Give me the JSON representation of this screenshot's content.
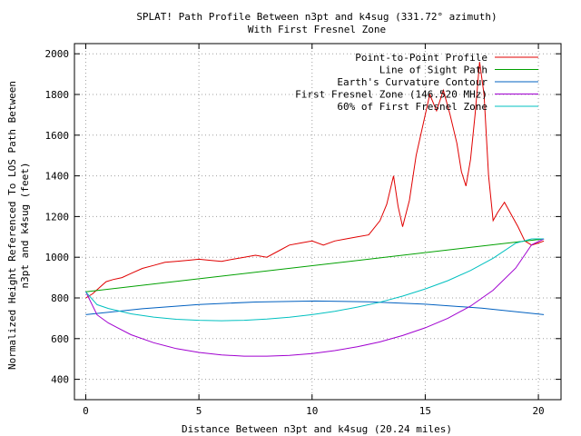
{
  "chart_data": {
    "type": "line",
    "title_line1": "SPLAT! Path Profile Between n3pt and k4sug (331.72° azimuth)",
    "title_line2": "With First Fresnel Zone",
    "xlabel": "Distance Between n3pt and k4sug (20.24 miles)",
    "ylabel_line1": "Normalized Height Referenced To LOS Path Between",
    "ylabel_line2": "n3pt and k4sug (feet)",
    "xlim": [
      -0.5,
      21
    ],
    "ylim": [
      300,
      2050
    ],
    "x_ticks": [
      0,
      5,
      10,
      15,
      20
    ],
    "y_ticks": [
      400,
      600,
      800,
      1000,
      1200,
      1400,
      1600,
      1800,
      2000
    ],
    "grid": true,
    "legend_position": "top-right",
    "series": [
      {
        "name": "Point-to-Point Profile",
        "color": "#e00000",
        "x": [
          0,
          0.3,
          0.6,
          0.9,
          1.2,
          1.6,
          2.0,
          2.5,
          3.0,
          3.5,
          4.0,
          4.5,
          5.0,
          5.5,
          6.0,
          6.5,
          7.0,
          7.5,
          8.0,
          8.5,
          9.0,
          9.5,
          10.0,
          10.5,
          11.0,
          11.5,
          12.0,
          12.5,
          13.0,
          13.3,
          13.6,
          13.8,
          14.0,
          14.3,
          14.6,
          14.9,
          15.2,
          15.5,
          15.8,
          16.1,
          16.4,
          16.6,
          16.8,
          17.0,
          17.2,
          17.4,
          17.6,
          17.8,
          18.0,
          18.2,
          18.5,
          18.8,
          19.1,
          19.4,
          19.7,
          20.0,
          20.24
        ],
        "y": [
          800,
          820,
          850,
          880,
          890,
          900,
          920,
          945,
          960,
          975,
          980,
          985,
          990,
          985,
          980,
          990,
          1000,
          1010,
          1000,
          1030,
          1060,
          1070,
          1080,
          1060,
          1080,
          1090,
          1100,
          1110,
          1180,
          1260,
          1400,
          1250,
          1150,
          1280,
          1500,
          1650,
          1800,
          1720,
          1820,
          1700,
          1560,
          1420,
          1350,
          1480,
          1700,
          1960,
          1800,
          1400,
          1180,
          1220,
          1270,
          1210,
          1150,
          1080,
          1060,
          1070,
          1080
        ]
      },
      {
        "name": "Line of Sight Path",
        "color": "#00a000",
        "x": [
          0,
          20.24
        ],
        "y": [
          830,
          1090
        ]
      },
      {
        "name": "Earth's Curvature Contour",
        "color": "#0060c0",
        "x": [
          0,
          2.5,
          5,
          7.5,
          10.12,
          12.5,
          15,
          17.5,
          20.24
        ],
        "y": [
          718,
          747,
          768,
          780,
          785,
          781,
          769,
          750,
          718
        ]
      },
      {
        "name": "First Fresnel Zone (146.520 MHz)",
        "color": "#a000d0",
        "x": [
          0,
          0.5,
          1,
          2,
          3,
          4,
          5,
          6,
          7,
          8,
          9,
          10,
          11,
          12,
          13,
          14,
          15,
          16,
          17,
          18,
          19,
          19.7,
          20.24
        ],
        "y": [
          830,
          717,
          677,
          619,
          580,
          551,
          532,
          520,
          514,
          514,
          518,
          527,
          541,
          560,
          584,
          615,
          653,
          700,
          760,
          838,
          947,
          1061,
          1090
        ]
      },
      {
        "name": "60% of First Fresnel Zone",
        "color": "#00c0c0",
        "x": [
          0,
          0.5,
          1,
          2,
          3,
          4,
          5,
          6,
          7,
          8,
          9,
          10,
          11,
          12,
          13,
          14,
          15,
          16,
          17,
          18,
          19,
          19.7,
          20.24
        ],
        "y": [
          830,
          767,
          748,
          722,
          706,
          695,
          690,
          688,
          690,
          696,
          705,
          718,
          734,
          755,
          779,
          809,
          844,
          885,
          935,
          995,
          1069,
          1090,
          1090
        ]
      }
    ]
  }
}
